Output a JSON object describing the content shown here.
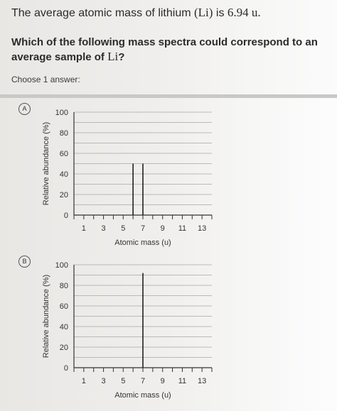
{
  "question": {
    "line1_text": "The average atomic mass of lithium ",
    "line1_math": "(Li)",
    "line1_is": " is ",
    "line1_value": "6.94 u.",
    "line2_text": "Which of the following mass spectra could correspond to an average sample of ",
    "line2_math": "Li",
    "line2_end": "?"
  },
  "instructions": "Choose 1 answer:",
  "options": [
    {
      "label": "A"
    },
    {
      "label": "B"
    }
  ],
  "chart_data": [
    {
      "type": "bar",
      "option": "A",
      "xlabel": "Atomic mass (u)",
      "ylabel": "Relative abundance (%)",
      "x_ticks": [
        1,
        3,
        5,
        7,
        9,
        11,
        13
      ],
      "y_ticks": [
        0,
        20,
        40,
        60,
        80,
        100
      ],
      "xlim": [
        0,
        14
      ],
      "ylim": [
        0,
        100
      ],
      "bars": [
        {
          "x": 6,
          "y": 50
        },
        {
          "x": 7,
          "y": 50
        }
      ]
    },
    {
      "type": "bar",
      "option": "B",
      "xlabel": "Atomic mass (u)",
      "ylabel": "Relative abundance (%)",
      "x_ticks": [
        1,
        3,
        5,
        7,
        9,
        11,
        13
      ],
      "y_ticks": [
        0,
        20,
        40,
        60,
        80,
        100
      ],
      "xlim": [
        0,
        14
      ],
      "ylim": [
        0,
        100
      ],
      "bars": [
        {
          "x": 7,
          "y": 92
        }
      ]
    }
  ]
}
